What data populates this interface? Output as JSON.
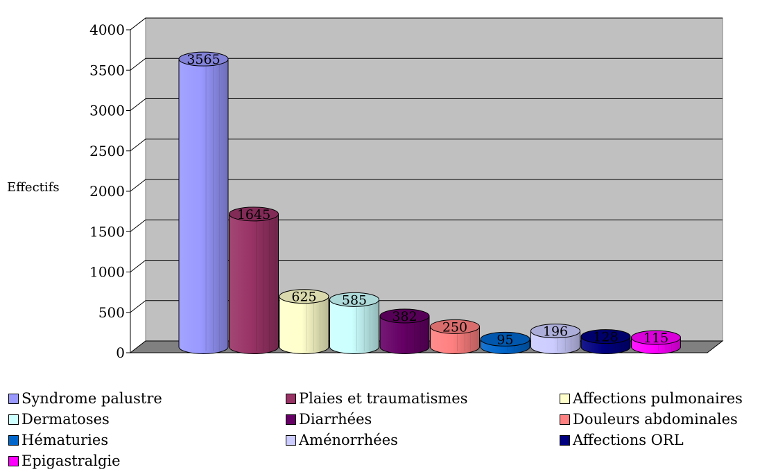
{
  "chart_data": {
    "type": "bar",
    "ylabel": "Effectifs",
    "ylim": [
      0,
      4000
    ],
    "yticks": [
      "0",
      "500",
      "1000",
      "1500",
      "2000",
      "2500",
      "3000",
      "3500",
      "4000"
    ],
    "grid": true,
    "legend_position": "bottom",
    "categories": [
      "Syndrome palustre",
      "Plaies et traumatismes",
      "Affections pulmonaires",
      "Dermatoses",
      "Diarrhées",
      "Douleurs abdominales",
      "Hématuries",
      "Aménorrhées",
      "Affections ORL",
      "Epigastralgie"
    ],
    "values": [
      3565,
      1645,
      625,
      585,
      382,
      250,
      95,
      196,
      128,
      115
    ],
    "data_labels": [
      "3565",
      "1645",
      "625",
      "585",
      "382",
      "250",
      "95",
      "196",
      "128",
      "115"
    ],
    "colors": [
      "#9999ff",
      "#993366",
      "#ffffcc",
      "#ccffff",
      "#660066",
      "#ff8080",
      "#0066cc",
      "#ccccff",
      "#000080",
      "#ff00ff"
    ]
  }
}
